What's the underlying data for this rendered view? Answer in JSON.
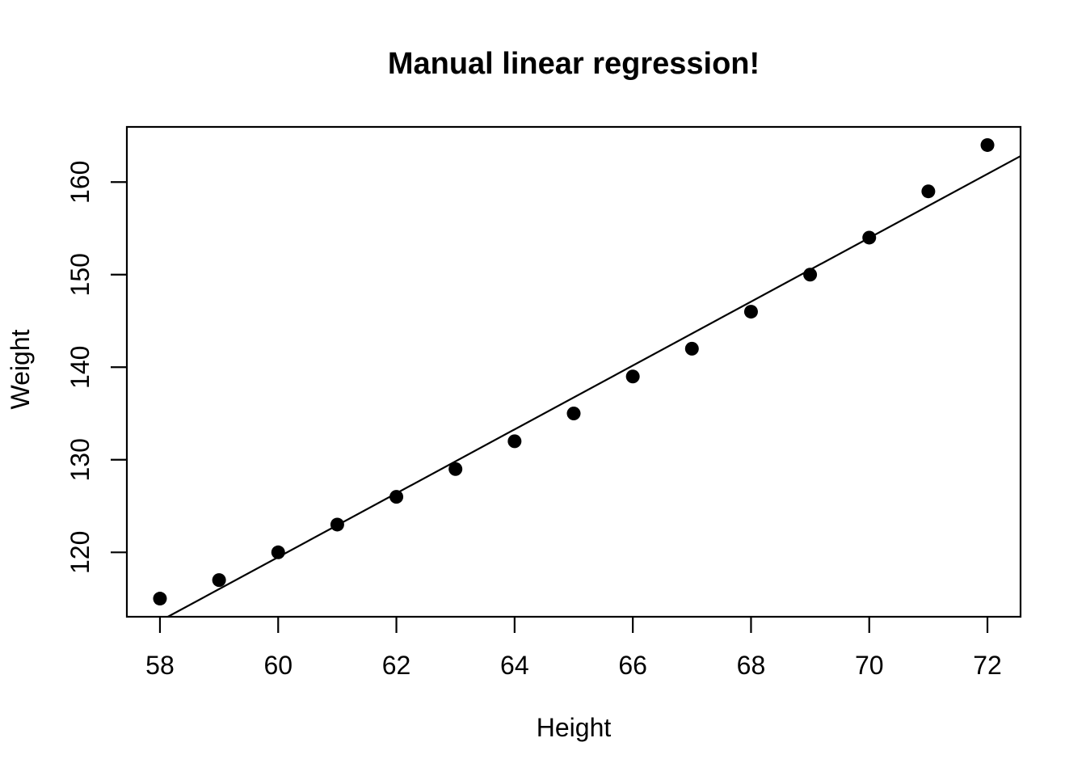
{
  "chart_data": {
    "type": "scatter",
    "title": "Manual linear regression!",
    "xlabel": "Height",
    "ylabel": "Weight",
    "x": [
      58,
      59,
      60,
      61,
      62,
      63,
      64,
      65,
      66,
      67,
      68,
      69,
      70,
      71,
      72
    ],
    "y": [
      115,
      117,
      120,
      123,
      126,
      129,
      132,
      135,
      139,
      142,
      146,
      150,
      154,
      159,
      164
    ],
    "x_ticks": [
      58,
      60,
      62,
      64,
      66,
      68,
      70,
      72
    ],
    "y_ticks": [
      120,
      130,
      140,
      150,
      160
    ],
    "xlim": [
      57.44,
      72.56
    ],
    "ylim": [
      113.04,
      165.96
    ],
    "regression_line": {
      "slope": 3.45,
      "intercept": -87.52
    },
    "grid": false,
    "legend": null,
    "point_color": "#000000",
    "line_color": "#000000",
    "axis_color": "#000000",
    "background_color": "#ffffff"
  }
}
